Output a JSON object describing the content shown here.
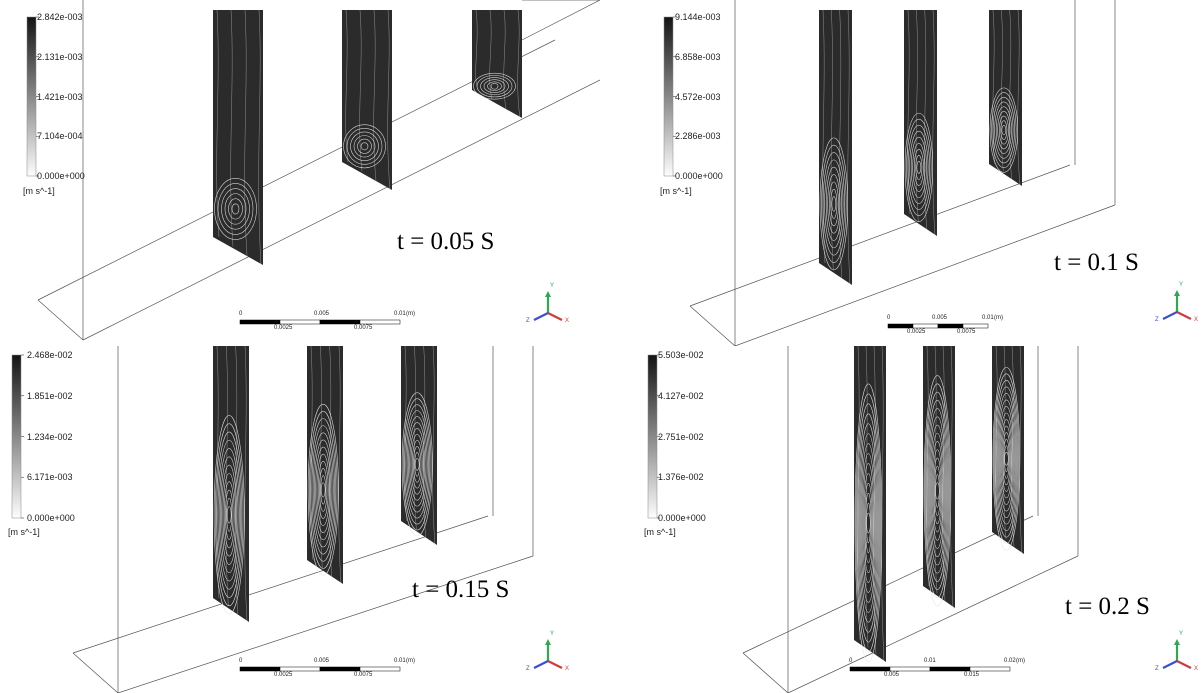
{
  "panels": [
    {
      "id": "p1",
      "time_label": "t = 0.05 S",
      "legend": {
        "ticks": [
          "2.842e-003",
          "2.131e-003",
          "1.421e-003",
          "7.104e-004",
          "0.000e+000"
        ],
        "unit": "[m s^-1]"
      },
      "scale": {
        "top": [
          "0",
          "0.005",
          "0.01",
          "(m)"
        ],
        "bottom": [
          "0.0025",
          "0.0075"
        ]
      },
      "vortex_level": 0.15
    },
    {
      "id": "p2",
      "time_label": "t = 0.1 S",
      "legend": {
        "ticks": [
          "9.144e-003",
          "6.858e-003",
          "4.572e-003",
          "2.286e-003",
          "0.000e+000"
        ],
        "unit": "[m s^-1]"
      },
      "scale": {
        "top": [
          "0",
          "0.005",
          "0.01",
          "(m)"
        ],
        "bottom": [
          "0.0025",
          "0.0075"
        ]
      },
      "vortex_level": 0.45
    },
    {
      "id": "p3",
      "time_label": "t = 0.15 S",
      "legend": {
        "ticks": [
          "2.468e-002",
          "1.851e-002",
          "1.234e-002",
          "6.171e-003",
          "0.000e+000"
        ],
        "unit": "[m s^-1]"
      },
      "scale": {
        "top": [
          "0",
          "0.005",
          "0.01",
          "(m)"
        ],
        "bottom": [
          "0.0025",
          "0.0075"
        ]
      },
      "vortex_level": 0.75
    },
    {
      "id": "p4",
      "time_label": "t = 0.2 S",
      "legend": {
        "ticks": [
          "5.503e-002",
          "4.127e-002",
          "2.751e-002",
          "1.376e-002",
          "0.000e+000"
        ],
        "unit": "[m s^-1]"
      },
      "scale": {
        "top": [
          "0",
          "0.01",
          "0.02",
          "(m)"
        ],
        "bottom": [
          "0.005",
          "0.015"
        ]
      },
      "vortex_level": 0.95
    }
  ],
  "triad": {
    "x": "X",
    "y": "Y",
    "z": "Z"
  },
  "colors": {
    "slab": "#2b2b2b",
    "streamline": "#e8e8e8",
    "box": "#555555",
    "triad_x": "#d23b3b",
    "triad_y": "#2fa84f",
    "triad_z": "#3b4fd2"
  }
}
